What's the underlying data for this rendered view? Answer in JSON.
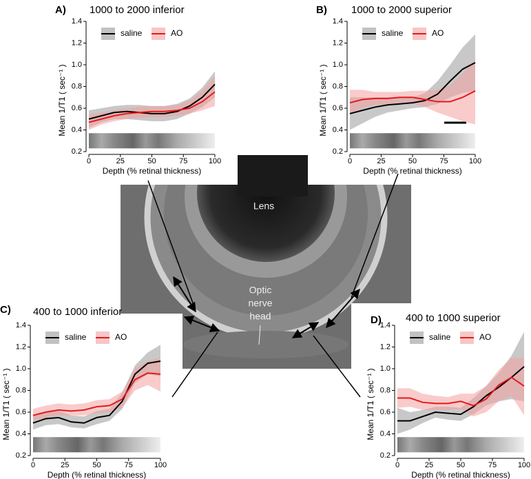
{
  "image_labels": {
    "lens": "Lens",
    "optic_nerve_head": [
      "Optic",
      "nerve",
      "head"
    ]
  },
  "chart_data": [
    {
      "type": "line",
      "panel": "A)",
      "title": "1000 to 2000 inferior",
      "x_label": "Depth (% retinal thickness)",
      "y_label": "Mean 1/T1 ( sec⁻¹ )",
      "xlim": [
        0,
        100
      ],
      "ylim": [
        0.2,
        1.4
      ],
      "xticks": [
        0,
        25,
        50,
        75,
        100
      ],
      "yticks": [
        0.2,
        0.4,
        0.6,
        0.8,
        {
          "value": 1,
          "label": "1.0"
        },
        1.2,
        1.4
      ],
      "x": [
        0,
        10,
        20,
        30,
        40,
        50,
        60,
        70,
        80,
        90,
        100
      ],
      "series": [
        {
          "name": "saline",
          "color": "#000000",
          "band_color": "#9a9a9a",
          "values": [
            0.5,
            0.53,
            0.56,
            0.57,
            0.56,
            0.55,
            0.55,
            0.57,
            0.62,
            0.7,
            0.82
          ],
          "lower": [
            0.42,
            0.47,
            0.5,
            0.5,
            0.49,
            0.48,
            0.48,
            0.5,
            0.55,
            0.61,
            0.7
          ],
          "upper": [
            0.58,
            0.6,
            0.62,
            0.63,
            0.63,
            0.62,
            0.62,
            0.64,
            0.69,
            0.79,
            0.94
          ]
        },
        {
          "name": "AO",
          "color": "#e41a1c",
          "band_color": "#f4a0a0",
          "values": [
            0.47,
            0.5,
            0.53,
            0.55,
            0.56,
            0.57,
            0.57,
            0.58,
            0.6,
            0.66,
            0.75
          ],
          "lower": [
            0.4,
            0.45,
            0.48,
            0.5,
            0.51,
            0.52,
            0.52,
            0.53,
            0.55,
            0.58,
            0.62
          ],
          "upper": [
            0.54,
            0.56,
            0.58,
            0.6,
            0.61,
            0.62,
            0.62,
            0.63,
            0.67,
            0.76,
            0.9
          ]
        }
      ]
    },
    {
      "type": "line",
      "panel": "B)",
      "title": "1000 to 2000 superior",
      "x_label": "Depth (% retinal thickness)",
      "y_label": "Mean 1/T1 ( sec⁻¹ )",
      "xlim": [
        0,
        100
      ],
      "ylim": [
        0.2,
        1.4
      ],
      "xticks": [
        0,
        25,
        50,
        75,
        100
      ],
      "yticks": [
        0.2,
        0.4,
        0.6,
        0.8,
        {
          "value": 1,
          "label": "1.0"
        },
        1.2,
        1.4
      ],
      "x": [
        0,
        10,
        20,
        30,
        40,
        50,
        60,
        70,
        80,
        90,
        100
      ],
      "series": [
        {
          "name": "saline",
          "color": "#000000",
          "band_color": "#9a9a9a",
          "values": [
            0.55,
            0.58,
            0.61,
            0.63,
            0.64,
            0.65,
            0.67,
            0.73,
            0.85,
            0.96,
            1.02
          ],
          "lower": [
            0.4,
            0.46,
            0.52,
            0.56,
            0.58,
            0.6,
            0.61,
            0.64,
            0.7,
            0.74,
            0.76
          ],
          "upper": [
            0.7,
            0.7,
            0.7,
            0.7,
            0.7,
            0.7,
            0.74,
            0.85,
            1.0,
            1.16,
            1.28
          ]
        },
        {
          "name": "AO",
          "color": "#e41a1c",
          "band_color": "#f4a0a0",
          "values": [
            0.65,
            0.68,
            0.69,
            0.69,
            0.7,
            0.7,
            0.68,
            0.66,
            0.66,
            0.7,
            0.76
          ],
          "lower": [
            0.55,
            0.6,
            0.63,
            0.63,
            0.64,
            0.64,
            0.61,
            0.56,
            0.52,
            0.48,
            0.45
          ],
          "upper": [
            0.77,
            0.77,
            0.75,
            0.75,
            0.75,
            0.76,
            0.76,
            0.77,
            0.81,
            0.92,
            1.05
          ]
        }
      ]
    },
    {
      "type": "line",
      "panel": "C)",
      "title": "400 to 1000 inferior",
      "x_label": "Depth (% retinal thickness)",
      "y_label": "Mean 1/T1 ( sec⁻¹ )",
      "xlim": [
        0,
        100
      ],
      "ylim": [
        0.2,
        1.4
      ],
      "xticks": [
        0,
        25,
        50,
        75,
        100
      ],
      "yticks": [
        0.2,
        0.4,
        0.6,
        0.8,
        {
          "value": 1,
          "label": "1.0"
        },
        1.2,
        1.4
      ],
      "x": [
        0,
        10,
        20,
        30,
        40,
        50,
        60,
        70,
        80,
        90,
        100
      ],
      "series": [
        {
          "name": "saline",
          "color": "#000000",
          "band_color": "#9a9a9a",
          "values": [
            0.5,
            0.54,
            0.55,
            0.51,
            0.5,
            0.55,
            0.57,
            0.7,
            0.95,
            1.05,
            1.07
          ],
          "lower": [
            0.44,
            0.48,
            0.49,
            0.46,
            0.45,
            0.49,
            0.52,
            0.63,
            0.87,
            0.95,
            0.93
          ],
          "upper": [
            0.56,
            0.6,
            0.61,
            0.57,
            0.56,
            0.61,
            0.63,
            0.78,
            1.03,
            1.15,
            1.22
          ]
        },
        {
          "name": "AO",
          "color": "#e41a1c",
          "band_color": "#f4a0a0",
          "values": [
            0.57,
            0.6,
            0.62,
            0.61,
            0.62,
            0.65,
            0.66,
            0.72,
            0.9,
            0.96,
            0.95
          ],
          "lower": [
            0.52,
            0.55,
            0.57,
            0.57,
            0.57,
            0.59,
            0.6,
            0.64,
            0.8,
            0.85,
            0.79
          ],
          "upper": [
            0.63,
            0.66,
            0.68,
            0.67,
            0.68,
            0.71,
            0.72,
            0.79,
            1.0,
            1.07,
            1.1
          ]
        }
      ]
    },
    {
      "type": "line",
      "panel": "D)",
      "title": "400 to 1000 superior",
      "x_label": "Depth (% retinal thickness)",
      "y_label": "Mean 1/T1 ( sec⁻¹ )",
      "xlim": [
        0,
        100
      ],
      "ylim": [
        0.2,
        1.4
      ],
      "xticks": [
        0,
        25,
        50,
        75,
        100
      ],
      "yticks": [
        0.2,
        0.4,
        0.6,
        0.8,
        {
          "value": 1,
          "label": "1.0"
        },
        1.2,
        1.4
      ],
      "x": [
        0,
        10,
        20,
        30,
        40,
        50,
        60,
        70,
        80,
        90,
        100
      ],
      "series": [
        {
          "name": "saline",
          "color": "#000000",
          "band_color": "#9a9a9a",
          "values": [
            0.52,
            0.52,
            0.56,
            0.6,
            0.59,
            0.58,
            0.65,
            0.75,
            0.83,
            0.92,
            1.02
          ],
          "lower": [
            0.4,
            0.44,
            0.5,
            0.55,
            0.53,
            0.52,
            0.58,
            0.66,
            0.7,
            0.72,
            0.7
          ],
          "upper": [
            0.64,
            0.6,
            0.62,
            0.65,
            0.65,
            0.64,
            0.73,
            0.84,
            0.96,
            1.12,
            1.34
          ]
        },
        {
          "name": "AO",
          "color": "#e41a1c",
          "band_color": "#f4a0a0",
          "values": [
            0.73,
            0.73,
            0.69,
            0.68,
            0.68,
            0.7,
            0.66,
            0.72,
            0.85,
            0.92,
            0.84
          ],
          "lower": [
            0.64,
            0.65,
            0.62,
            0.62,
            0.62,
            0.63,
            0.56,
            0.6,
            0.7,
            0.75,
            0.57
          ],
          "upper": [
            0.82,
            0.82,
            0.77,
            0.75,
            0.74,
            0.77,
            0.77,
            0.84,
            0.99,
            1.1,
            1.1
          ]
        }
      ]
    }
  ]
}
